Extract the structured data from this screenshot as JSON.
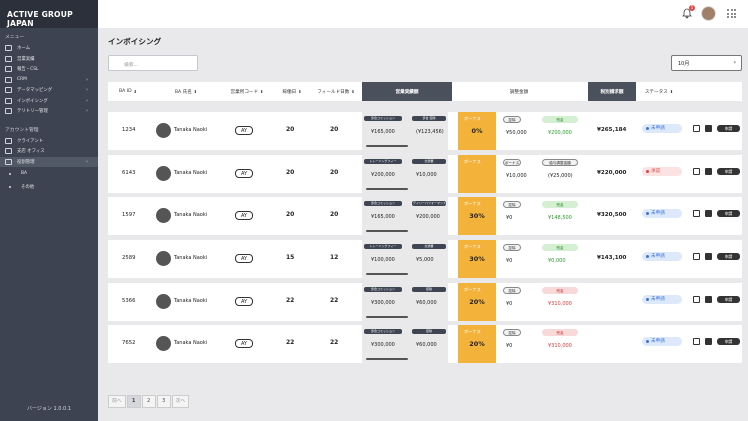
{
  "brand": "ACTIVE GROUP JAPAN",
  "sidebar": {
    "menu_title": "メニュー",
    "items": [
      {
        "label": "ホーム",
        "icon": "home-icon",
        "chevron": false
      },
      {
        "label": "営業実績",
        "icon": "bar-chart-icon",
        "chevron": false
      },
      {
        "label": "報告・CSL",
        "icon": "document-icon",
        "chevron": false
      },
      {
        "label": "CRM",
        "icon": "crm-icon",
        "chevron": true
      },
      {
        "label": "データマッピング",
        "icon": "database-icon",
        "chevron": true
      },
      {
        "label": "インボイシング",
        "icon": "invoice-icon",
        "chevron": true
      },
      {
        "label": "テリトリー管理",
        "icon": "territory-icon",
        "chevron": true
      }
    ],
    "account_title": "アカウント管理",
    "account_items": [
      {
        "label": "クライアント",
        "icon": "client-icon",
        "chevron": false
      },
      {
        "label": "支店 オフィス",
        "icon": "office-icon",
        "chevron": false
      },
      {
        "label": "役割管理",
        "icon": "role-icon",
        "chevron": true
      }
    ],
    "sub_items": [
      "BA",
      "その他"
    ],
    "version": "バージョン 1.0.0.1"
  },
  "header": {
    "notification_count": "5"
  },
  "page": {
    "title": "インボイシング",
    "search_placeholder": "検索...",
    "month": "10月"
  },
  "table": {
    "headers": [
      "BA ID",
      "BA 氏名",
      "営業所コード",
      "稼働日",
      "フィールド日数",
      "営業実績額",
      "調整金額",
      "税別請求額",
      "ステータス"
    ],
    "rows": [
      {
        "id": "1234",
        "name": "Tanaka Naoki",
        "code": "AY",
        "days": "20",
        "field_days": "20",
        "tag1": "歩合コミッション",
        "tag2": "歩合 控除",
        "amount1": "¥165,000",
        "amount2": "(¥123,456)",
        "bonus_label": "ボーナス",
        "bonus_pct": "0%",
        "pill1": "控除",
        "pill2": "残金",
        "val1": "¥50,000",
        "val2": "¥200,000",
        "val2_color": "g",
        "total": "¥265,184",
        "status": "未申請",
        "status_color": "blue",
        "button": "申請"
      },
      {
        "id": "6143",
        "name": "Tanaka Naoki",
        "code": "AY",
        "days": "20",
        "field_days": "20",
        "tag1": "トレーニングフィー",
        "tag2": "交通費",
        "amount1": "¥200,000",
        "amount2": "¥10,000",
        "bonus_label": "ボーナス",
        "bonus_pct": "",
        "pill1": "ボーナス",
        "pill2": "給与調整金額",
        "val1": "¥10,000",
        "val2": "(¥25,000)",
        "val2_color": "",
        "total": "¥220,000",
        "status": "承認",
        "status_color": "red",
        "button": "申請"
      },
      {
        "id": "1597",
        "name": "Tanaka Naoki",
        "code": "AY",
        "days": "20",
        "field_days": "20",
        "tag1": "歩合コミッション",
        "tag2": "デイリーパフォーマンス",
        "amount1": "¥165,000",
        "amount2": "¥200,000",
        "bonus_label": "ボーナス",
        "bonus_pct": "30%",
        "pill1": "控除",
        "pill2": "残金",
        "val1": "¥0",
        "val2": "¥148,500",
        "val2_color": "g",
        "total": "¥320,500",
        "status": "未申請",
        "status_color": "blue",
        "button": "申請"
      },
      {
        "id": "2589",
        "name": "Tanaka Naoki",
        "code": "AY",
        "days": "15",
        "field_days": "12",
        "tag1": "トレーニングフィー",
        "tag2": "交通費",
        "amount1": "¥100,000",
        "amount2": "¥5,000",
        "bonus_label": "ボーナス",
        "bonus_pct": "30%",
        "pill1": "控除",
        "pill2": "残金",
        "val1": "¥0",
        "val2": "¥0,000",
        "val2_color": "g",
        "total": "¥143,100",
        "status": "未申請",
        "status_color": "blue",
        "button": "申請"
      },
      {
        "id": "5366",
        "name": "Tanaka Naoki",
        "code": "AY",
        "days": "22",
        "field_days": "22",
        "tag1": "歩合コミッション",
        "tag2": "控除",
        "amount1": "¥300,000",
        "amount2": "¥60,000",
        "bonus_label": "ボーナス",
        "bonus_pct": "20%",
        "pill1": "控除",
        "pill2": "残金",
        "val1": "¥0",
        "val2": "¥310,000",
        "val2_color": "r",
        "total": "",
        "status": "未申請",
        "status_color": "blue",
        "button": "申請"
      },
      {
        "id": "7652",
        "name": "Tanaka Naoki",
        "code": "AY",
        "days": "22",
        "field_days": "22",
        "tag1": "歩合コミッション",
        "tag2": "控除",
        "amount1": "¥300,000",
        "amount2": "¥60,000",
        "bonus_label": "ボーナス",
        "bonus_pct": "20%",
        "pill1": "控除",
        "pill2": "残金",
        "val1": "¥0",
        "val2": "¥310,000",
        "val2_color": "r",
        "total": "",
        "status": "未申請",
        "status_color": "blue",
        "button": "申請"
      }
    ]
  },
  "pagination": {
    "prev": "前へ",
    "pages": [
      "1",
      "2",
      "3"
    ],
    "next": "次へ"
  }
}
